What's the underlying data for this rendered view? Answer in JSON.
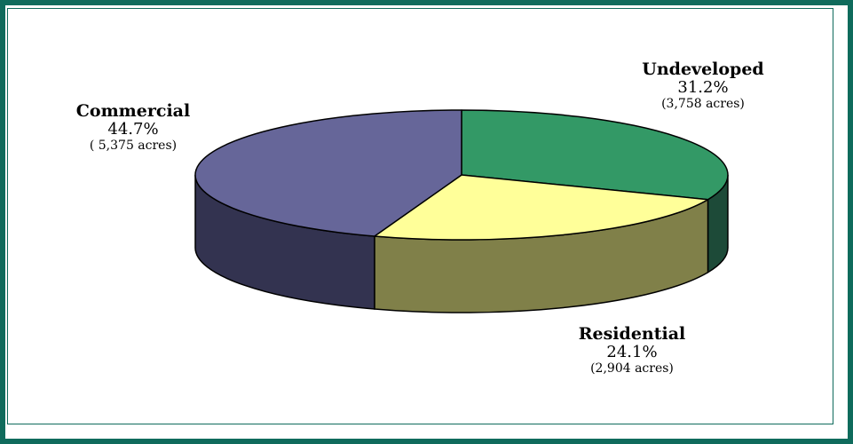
{
  "chart_data": {
    "type": "pie",
    "style": "3d",
    "slices": [
      {
        "label": "Undeveloped",
        "percent": 31.2,
        "percent_text": "31.2%",
        "acres_text": "(3,758 acres)",
        "acres": 3758,
        "color": "#339966",
        "side_color": "#1d4a38"
      },
      {
        "label": "Residential",
        "percent": 24.1,
        "percent_text": "24.1%",
        "acres_text": "(2,904 acres)",
        "acres": 2904,
        "color": "#ffff99",
        "side_color": "#808049"
      },
      {
        "label": "Commercial",
        "percent": 44.7,
        "percent_text": "44.7%",
        "acres_text": "( 5,375 acres)",
        "acres": 5375,
        "color": "#666699",
        "side_color": "#333350"
      }
    ]
  },
  "frame_color": "#0f6b5c"
}
